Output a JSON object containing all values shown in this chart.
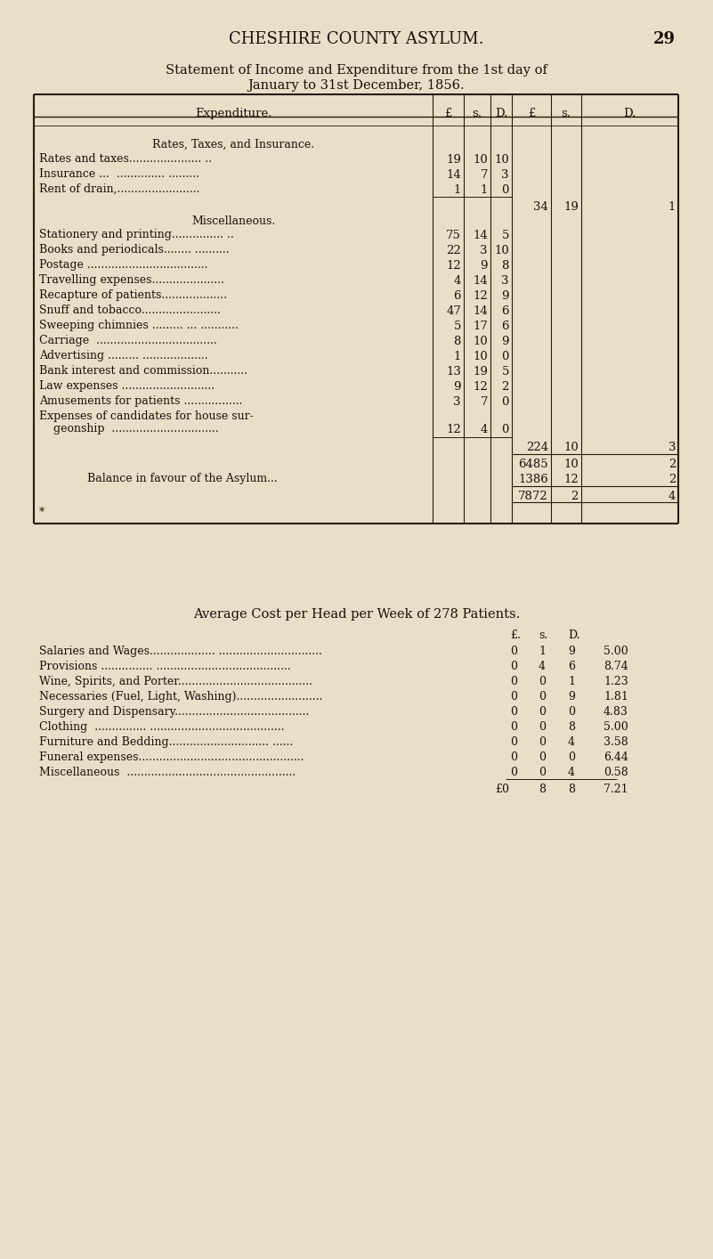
{
  "bg_color": "#e8dfc8",
  "page_title": "CHESHIRE COUNTY ASYLUM.",
  "page_number": "29",
  "statement_title_line1": "Statement of Income and Expenditure from the 1st day of",
  "statement_title_line2": "January to 31st December, 1856.",
  "section1_header": "Rates, Taxes, and Insurance.",
  "section1_items": [
    [
      "Rates and taxes..................... ..",
      "19",
      "10",
      "10"
    ],
    [
      "Insurance ...  .............. .........",
      "14",
      "7",
      "3"
    ],
    [
      "Rent of drain,........................",
      "1",
      "1",
      "0"
    ]
  ],
  "section1_total": [
    "34",
    "19",
    "1"
  ],
  "section2_header": "Miscellaneous.",
  "section2_items": [
    [
      "Stationery and printing............... ..",
      "75",
      "14",
      "5"
    ],
    [
      "Books and periodicals........ ..........",
      "22",
      "3",
      "10"
    ],
    [
      "Postage ...................................",
      "12",
      "9",
      "8"
    ],
    [
      "Travelling expenses.....................",
      "4",
      "14",
      "3"
    ],
    [
      "Recapture of patients...................",
      "6",
      "12",
      "9"
    ],
    [
      "Snuff and tobacco.......................",
      "47",
      "14",
      "6"
    ],
    [
      "Sweeping chimnies ......... ... ...........",
      "5",
      "17",
      "6"
    ],
    [
      "Carriage  ...................................",
      "8",
      "10",
      "9"
    ],
    [
      "Advertising ......... ...................",
      "1",
      "10",
      "0"
    ],
    [
      "Bank interest and commission...........",
      "13",
      "19",
      "5"
    ],
    [
      "Law expenses ...........................",
      "9",
      "12",
      "2"
    ],
    [
      "Amusements for patients .................",
      "3",
      "7",
      "0"
    ]
  ],
  "section2_item_last_line1": "Expenses of candidates for house sur-",
  "section2_item_last_line2": "    geonship  ...............................",
  "section2_item_last_vals": [
    "12",
    "4",
    "0"
  ],
  "section2_total": [
    "224",
    "10",
    "3"
  ],
  "subtotal": [
    "6485",
    "10",
    "2"
  ],
  "balance_label": "Balance in favour of the Asylum...",
  "balance": [
    "1386",
    "12",
    "2"
  ],
  "grand_total": [
    "7872",
    "2",
    "4"
  ],
  "footnote": "*",
  "avg_title": "Average Cost per Head per Week of 278 Patients.",
  "avg_header_pound": "£.",
  "avg_header_s": "s.",
  "avg_header_d": "D.",
  "avg_items": [
    [
      "Salaries and Wages................... ..............................",
      "0",
      "1",
      "9",
      "5.00"
    ],
    [
      "Provisions ............... .......................................",
      "0",
      "4",
      "6",
      "8.74"
    ],
    [
      "Wine, Spirits, and Porter.......................................",
      "0",
      "0",
      "1",
      "1.23"
    ],
    [
      "Necessaries (Fuel, Light, Washing).........................",
      "0",
      "0",
      "9",
      "1.81"
    ],
    [
      "Surgery and Dispensary.......................................",
      "0",
      "0",
      "0",
      "4.83"
    ],
    [
      "Clothing  ............... .......................................",
      "0",
      "0",
      "8",
      "5.00"
    ],
    [
      "Furniture and Bedding............................. ......",
      "0",
      "0",
      "4",
      "3.58"
    ],
    [
      "Funeral expenses................................................",
      "0",
      "0",
      "0",
      "6.44"
    ],
    [
      "Miscellaneous  .................................................",
      "0",
      "0",
      "4",
      "0.58"
    ]
  ],
  "avg_total_pound": "£0",
  "avg_total_s": "8",
  "avg_total_d": "8",
  "avg_total_dec": "7.21",
  "text_color": "#1a1008",
  "line_color": "#2a1a05"
}
